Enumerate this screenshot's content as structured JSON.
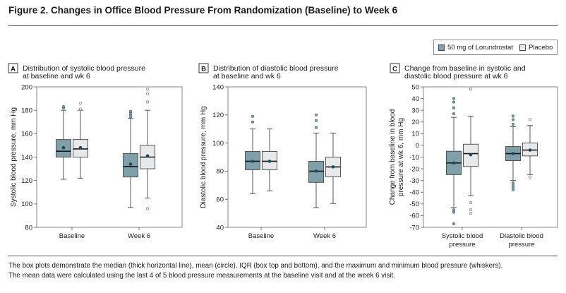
{
  "figure": {
    "title": "Figure 2. Changes in Office Blood Pressure From Randomization (Baseline) to Week 6",
    "caption_line1": "The box plots demonstrate the median (thick horizontal line), mean (circle), IQR (box top and bottom), and the maximum and minimum blood pressure (whiskers).",
    "caption_line2": "The mean data were calculated using the last 4 of 5 blood pressure measurements at the baseline visit and at the week 6 visit."
  },
  "legend": {
    "items": [
      {
        "label": "50 mg of Lorundrostat",
        "color": "#7f9fab"
      },
      {
        "label": "Placebo",
        "color": "#e8e9ea"
      }
    ]
  },
  "colors": {
    "lorundrostat": "#7f9fab",
    "placebo": "#e8e9ea",
    "mean_marker": "#1f4a58",
    "stroke": "#444444"
  },
  "chart_data": [
    {
      "panel": "A",
      "type": "box",
      "title_line1": "Distribution of systolic blood pressure",
      "title_line2": "at baseline and wk 6",
      "ylabel": "Systolic blood pressure, mm Hg",
      "ylim": [
        80,
        200
      ],
      "yticks": [
        80,
        100,
        120,
        140,
        160,
        180,
        200
      ],
      "categories": [
        "Baseline",
        "Week 6"
      ],
      "series": [
        {
          "name": "50 mg of Lorundrostat",
          "boxes": [
            {
              "min": 121,
              "q1": 140,
              "median": 145,
              "q3": 155,
              "max": 180,
              "mean": 148,
              "outliers": [
                182,
                183
              ]
            },
            {
              "min": 97,
              "q1": 123,
              "median": 132,
              "q3": 143,
              "max": 173,
              "mean": 134,
              "outliers": [
                174,
                176,
                178,
                179
              ]
            }
          ]
        },
        {
          "name": "Placebo",
          "boxes": [
            {
              "min": 122,
              "q1": 140,
              "median": 147,
              "q3": 155,
              "max": 180,
              "mean": 148,
              "outliers": [
                181,
                186
              ]
            },
            {
              "min": 105,
              "q1": 130,
              "median": 140,
              "q3": 150,
              "max": 180,
              "mean": 141,
              "outliers": [
                96,
                187,
                194,
                198
              ]
            }
          ]
        }
      ]
    },
    {
      "panel": "B",
      "type": "box",
      "title_line1": "Distribution of diastolic blood pressure",
      "title_line2": "at baseline and wk 6",
      "ylabel": "Diastolic blood pressure, mm Hg",
      "ylim": [
        40,
        140
      ],
      "yticks": [
        40,
        60,
        80,
        100,
        120,
        140
      ],
      "categories": [
        "Baseline",
        "Week 6"
      ],
      "series": [
        {
          "name": "50 mg of Lorundrostat",
          "boxes": [
            {
              "min": 64,
              "q1": 81,
              "median": 87,
              "q3": 94,
              "max": 110,
              "mean": 87,
              "outliers": [
                115,
                119
              ]
            },
            {
              "min": 54,
              "q1": 72,
              "median": 80,
              "q3": 87,
              "max": 107,
              "mean": 80,
              "outliers": [
                111,
                116,
                120
              ]
            }
          ]
        },
        {
          "name": "Placebo",
          "boxes": [
            {
              "min": 66,
              "q1": 81,
              "median": 87,
              "q3": 94,
              "max": 110,
              "mean": 87,
              "outliers": []
            },
            {
              "min": 57,
              "q1": 76,
              "median": 83,
              "q3": 90,
              "max": 107,
              "mean": 83,
              "outliers": []
            }
          ]
        }
      ]
    },
    {
      "panel": "C",
      "type": "box",
      "title_line1": "Change from baseline in systolic and",
      "title_line2": "diastolic blood pressure at wk 6",
      "ylabel_line1": "Change from baseline in blood",
      "ylabel_line2": "pressure at wk 6, mm Hg",
      "ylim": [
        -70,
        50
      ],
      "yticks": [
        -70,
        -60,
        -50,
        -40,
        -30,
        -20,
        -10,
        0,
        10,
        20,
        30,
        40,
        50
      ],
      "categories_line1": [
        "Systolic blood",
        "Diastolic blood"
      ],
      "categories_line2": [
        "pressure",
        "pressure"
      ],
      "series": [
        {
          "name": "50 mg of Lorundrostat",
          "boxes": [
            {
              "min": -53,
              "q1": -25,
              "median": -15,
              "q3": -5,
              "max": 24,
              "mean": -15,
              "outliers": [
                -55,
                -57,
                -67,
                27,
                32,
                37,
                40
              ]
            },
            {
              "min": -30,
              "q1": -13,
              "median": -7,
              "q3": -1,
              "max": 16,
              "mean": -7,
              "outliers": [
                -32,
                -34,
                -36,
                -38,
                18,
                22,
                25
              ]
            }
          ]
        },
        {
          "name": "Placebo",
          "boxes": [
            {
              "min": -43,
              "q1": -18,
              "median": -7,
              "q3": 1,
              "max": 25,
              "mean": -8,
              "outliers": [
                -49,
                -55,
                -58,
                48
              ]
            },
            {
              "min": -25,
              "q1": -9,
              "median": -4,
              "q3": 2,
              "max": 17,
              "mean": -4,
              "outliers": [
                -27,
                22
              ]
            }
          ]
        }
      ]
    }
  ]
}
